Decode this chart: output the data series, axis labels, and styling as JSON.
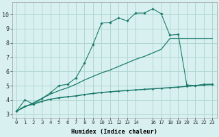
{
  "xlabel": "Humidex (Indice chaleur)",
  "bg_color": "#d8f0f0",
  "grid_color": "#b0d8d0",
  "line_color": "#1a7a6a",
  "xlim": [
    -0.5,
    23.5
  ],
  "ylim": [
    2.75,
    10.85
  ],
  "xticks": [
    0,
    1,
    2,
    3,
    4,
    5,
    6,
    7,
    8,
    9,
    10,
    11,
    12,
    13,
    14,
    16,
    17,
    18,
    19,
    20,
    21,
    22,
    23
  ],
  "yticks": [
    3,
    4,
    5,
    6,
    7,
    8,
    9,
    10
  ],
  "line_jagged_x": [
    0,
    1,
    2,
    3,
    4,
    5,
    6,
    7,
    8,
    9,
    10,
    11,
    12,
    13,
    14,
    15,
    16,
    17,
    18,
    19,
    20,
    21,
    22,
    23
  ],
  "line_jagged_y": [
    3.2,
    4.0,
    3.7,
    4.1,
    4.5,
    5.0,
    5.1,
    5.55,
    6.6,
    7.9,
    9.4,
    9.45,
    9.75,
    9.55,
    10.1,
    10.1,
    10.4,
    10.05,
    8.55,
    8.6,
    5.05,
    5.0,
    5.1,
    5.1
  ],
  "line_diagonal_x": [
    0,
    1,
    2,
    3,
    4,
    5,
    6,
    7,
    8,
    9,
    10,
    11,
    12,
    13,
    14,
    15,
    16,
    17,
    18,
    19,
    20,
    21,
    22,
    23
  ],
  "line_diagonal_y": [
    3.2,
    3.5,
    3.8,
    4.1,
    4.4,
    4.65,
    4.85,
    5.1,
    5.4,
    5.65,
    5.9,
    6.1,
    6.35,
    6.6,
    6.85,
    7.05,
    7.3,
    7.55,
    8.3,
    8.3,
    8.3,
    8.3,
    8.3,
    8.3
  ],
  "line_flat_x": [
    0,
    1,
    2,
    3,
    4,
    5,
    6,
    7,
    8,
    9,
    10,
    11,
    12,
    13,
    14,
    15,
    16,
    17,
    18,
    19,
    20,
    21,
    22,
    23
  ],
  "line_flat_y": [
    3.2,
    3.55,
    3.7,
    3.9,
    4.05,
    4.15,
    4.22,
    4.28,
    4.38,
    4.45,
    4.52,
    4.57,
    4.62,
    4.66,
    4.7,
    4.74,
    4.78,
    4.82,
    4.86,
    4.9,
    4.95,
    5.0,
    5.05,
    5.08
  ]
}
